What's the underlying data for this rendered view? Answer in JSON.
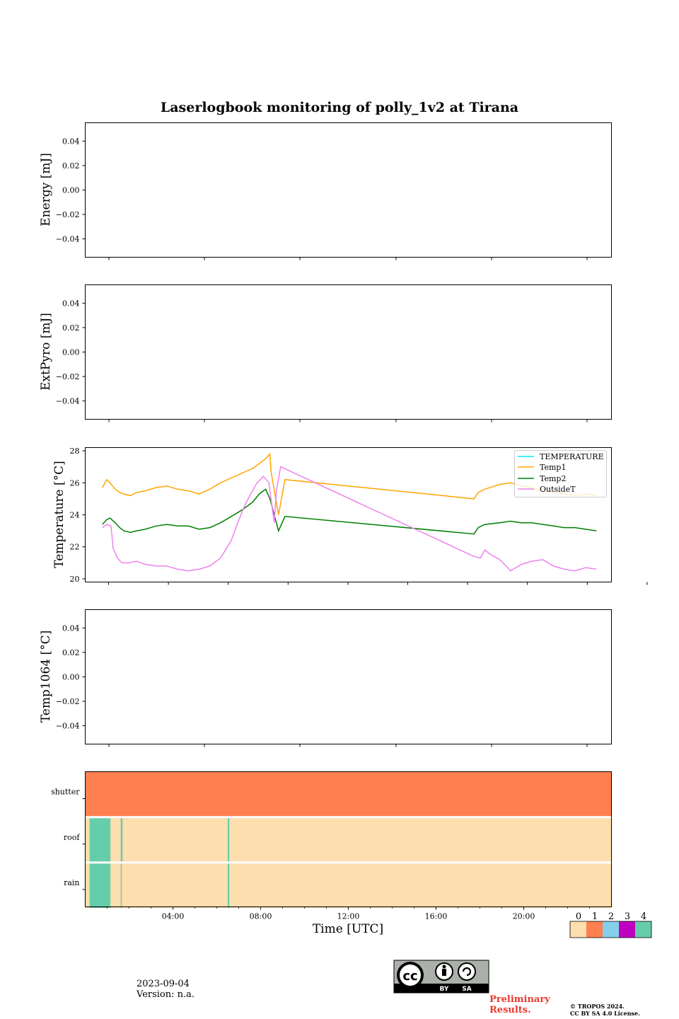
{
  "figure": {
    "title": "Laserlogbook monitoring of polly_1v2 at Tirana",
    "xlabel": "Time [UTC]",
    "date": "2023-09-04",
    "version": "Version: n.a.",
    "preliminary_line1": "Preliminary",
    "preliminary_line2": "Results.",
    "copyright_line1": "© TROPOS 2024.",
    "copyright_line2": "CC BY SA 4.0 License.",
    "cc_badge": {
      "text": "cc",
      "by": "BY",
      "sa": "SA"
    }
  },
  "chart_data": [
    {
      "type": "line",
      "panel": "energy",
      "ylabel": "Energy [mJ]",
      "ylim": [
        -0.055,
        0.055
      ],
      "yticks": [
        "0.04",
        "0.02",
        "0.00",
        "−0.02",
        "−0.04"
      ],
      "series": []
    },
    {
      "type": "line",
      "panel": "extpyro",
      "ylabel": "ExtPyro [mJ]",
      "ylim": [
        -0.055,
        0.055
      ],
      "yticks": [
        "0.04",
        "0.02",
        "0.00",
        "−0.02",
        "−0.04"
      ],
      "series": []
    },
    {
      "type": "line",
      "panel": "temperature",
      "ylabel": "Temperature [°C]",
      "xlim": [
        -0.8,
        23.7
      ],
      "ylim": [
        19.8,
        28.2
      ],
      "yticks": [
        "28",
        "26",
        "24",
        "22",
        "20"
      ],
      "legend": "top-right",
      "series": [
        {
          "name": "TEMPERATURE",
          "color": "#00e5ff",
          "x": [],
          "y": []
        },
        {
          "name": "Temp1",
          "color": "#ffa500",
          "x": [
            0,
            0.2,
            0.35,
            0.6,
            0.8,
            1.0,
            1.3,
            1.6,
            2.0,
            2.5,
            3.0,
            3.5,
            4.0,
            4.5,
            5.0,
            5.5,
            6.0,
            6.5,
            7.0,
            7.3,
            7.6,
            7.8,
            7.85,
            8.2,
            8.5,
            17.3,
            17.5,
            17.8,
            18.5,
            19.0,
            19.5,
            20.0,
            20.5,
            21.0,
            21.5,
            22.0,
            22.5,
            23.0
          ],
          "y": [
            25.7,
            26.2,
            26.0,
            25.6,
            25.4,
            25.3,
            25.2,
            25.4,
            25.5,
            25.7,
            25.8,
            25.6,
            25.5,
            25.3,
            25.6,
            26.0,
            26.3,
            26.6,
            26.9,
            27.2,
            27.5,
            27.8,
            26.7,
            24.0,
            26.2,
            25.0,
            25.4,
            25.6,
            25.9,
            26.0,
            25.8,
            25.7,
            25.5,
            25.4,
            25.3,
            25.2,
            25.3,
            25.2
          ]
        },
        {
          "name": "Temp2",
          "color": "#008000",
          "x": [
            0,
            0.2,
            0.35,
            0.6,
            0.8,
            1.0,
            1.3,
            1.6,
            2.0,
            2.5,
            3.0,
            3.5,
            4.0,
            4.5,
            5.0,
            5.5,
            6.0,
            6.5,
            7.0,
            7.3,
            7.6,
            7.8,
            8.2,
            8.5,
            17.3,
            17.5,
            17.8,
            18.5,
            19.0,
            19.5,
            20.0,
            20.5,
            21.0,
            21.5,
            22.0,
            22.5,
            23.0
          ],
          "y": [
            23.4,
            23.7,
            23.8,
            23.5,
            23.2,
            23.0,
            22.9,
            23.0,
            23.1,
            23.3,
            23.4,
            23.3,
            23.3,
            23.1,
            23.2,
            23.5,
            23.9,
            24.3,
            24.8,
            25.3,
            25.6,
            25.0,
            23.0,
            23.9,
            22.8,
            23.2,
            23.4,
            23.5,
            23.6,
            23.5,
            23.5,
            23.4,
            23.3,
            23.2,
            23.2,
            23.1,
            23.0
          ]
        },
        {
          "name": "OutsideT",
          "color": "#ee82ee",
          "x": [
            0,
            0.2,
            0.4,
            0.45,
            0.5,
            0.7,
            0.9,
            1.2,
            1.6,
            2.0,
            2.5,
            3.0,
            3.5,
            4.0,
            4.5,
            5.0,
            5.5,
            6.0,
            6.3,
            6.6,
            6.9,
            7.2,
            7.5,
            7.75,
            8.0,
            8.1,
            8.3,
            17.3,
            17.6,
            17.8,
            18.1,
            18.5,
            18.8,
            19.0,
            19.5,
            20.0,
            20.5,
            21.0,
            21.5,
            22.0,
            22.5,
            23.0
          ],
          "y": [
            23.2,
            23.4,
            23.3,
            22.6,
            21.9,
            21.3,
            21.0,
            21.0,
            21.1,
            20.9,
            20.8,
            20.8,
            20.6,
            20.5,
            20.6,
            20.8,
            21.3,
            22.4,
            23.5,
            24.5,
            25.3,
            26.0,
            26.4,
            26.0,
            23.5,
            25.5,
            27.0,
            21.4,
            21.3,
            21.8,
            21.5,
            21.2,
            20.8,
            20.5,
            20.9,
            21.1,
            21.2,
            20.8,
            20.6,
            20.5,
            20.7,
            20.6
          ]
        }
      ]
    },
    {
      "type": "line",
      "panel": "temp1064",
      "ylabel": "Temp1064 [°C]",
      "ylim": [
        -0.055,
        0.055
      ],
      "yticks": [
        "0.04",
        "0.02",
        "0.00",
        "−0.02",
        "−0.04"
      ],
      "series": []
    },
    {
      "type": "heatmap",
      "panel": "status",
      "xlim": [
        0,
        24
      ],
      "xticks": [
        "04:00",
        "08:00",
        "12:00",
        "16:00",
        "20:00"
      ],
      "xtick_values": [
        4,
        8,
        12,
        16,
        20
      ],
      "rows": [
        {
          "name": "shutter",
          "base": 1,
          "segments": []
        },
        {
          "name": "roof",
          "base": 0,
          "segments": [
            {
              "start": 0.2,
              "end": 1.15,
              "value": 4
            },
            {
              "start": 1.62,
              "end": 1.7,
              "value": 4
            },
            {
              "start": 6.5,
              "end": 6.57,
              "value": 4
            }
          ]
        },
        {
          "name": "rain",
          "base": 0,
          "segments": [
            {
              "start": 0.2,
              "end": 1.15,
              "value": 4
            },
            {
              "start": 1.62,
              "end": 1.66,
              "value": 4
            },
            {
              "start": 6.5,
              "end": 6.57,
              "value": 4
            }
          ]
        }
      ],
      "colorbar": {
        "labels": [
          "0",
          "1",
          "2",
          "3",
          "4"
        ],
        "colors": [
          "#fddeae",
          "#ff7f50",
          "#87ceeb",
          "#c000c0",
          "#66cdaa"
        ]
      }
    }
  ]
}
